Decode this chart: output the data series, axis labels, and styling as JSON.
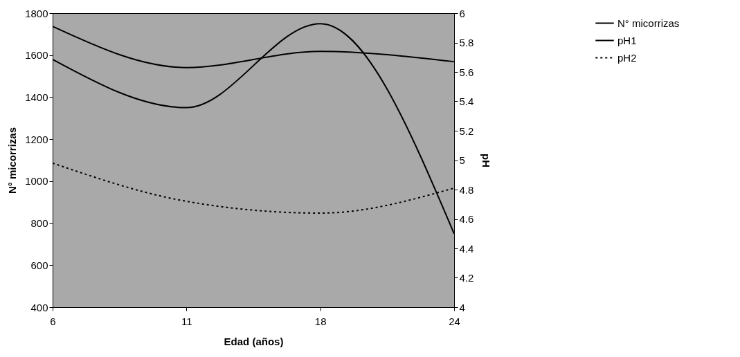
{
  "chart_data": {
    "type": "line",
    "xlabel": "Edad (años)",
    "ylabel": "N° micorrizas",
    "y2label": "pH",
    "categories": [
      "6",
      "11",
      "18",
      "24"
    ],
    "series": [
      {
        "name": "N° micorrizas",
        "color": "#000000",
        "line_style": "solid",
        "values": [
          1580,
          1350,
          1750,
          750
        ]
      },
      {
        "name": "pH1",
        "color": "#000000",
        "line_style": "solid",
        "axis": "y2",
        "values": [
          5.91,
          5.63,
          5.74,
          5.67
        ]
      },
      {
        "name": "pH2",
        "color": "#000000",
        "line_style": "dotted",
        "axis": "y2",
        "values": [
          4.98,
          4.72,
          4.64,
          4.81
        ]
      }
    ],
    "ylim": [
      400,
      1800
    ],
    "yticks": [
      400,
      600,
      800,
      1000,
      1200,
      1400,
      1600,
      1800
    ],
    "y2lim": [
      4,
      6
    ],
    "y2ticks": [
      4,
      4.2,
      4.4,
      4.6,
      4.8,
      5,
      5.2,
      5.4,
      5.6,
      5.8,
      6
    ],
    "grid": false,
    "legend": "right",
    "marker": "none"
  }
}
